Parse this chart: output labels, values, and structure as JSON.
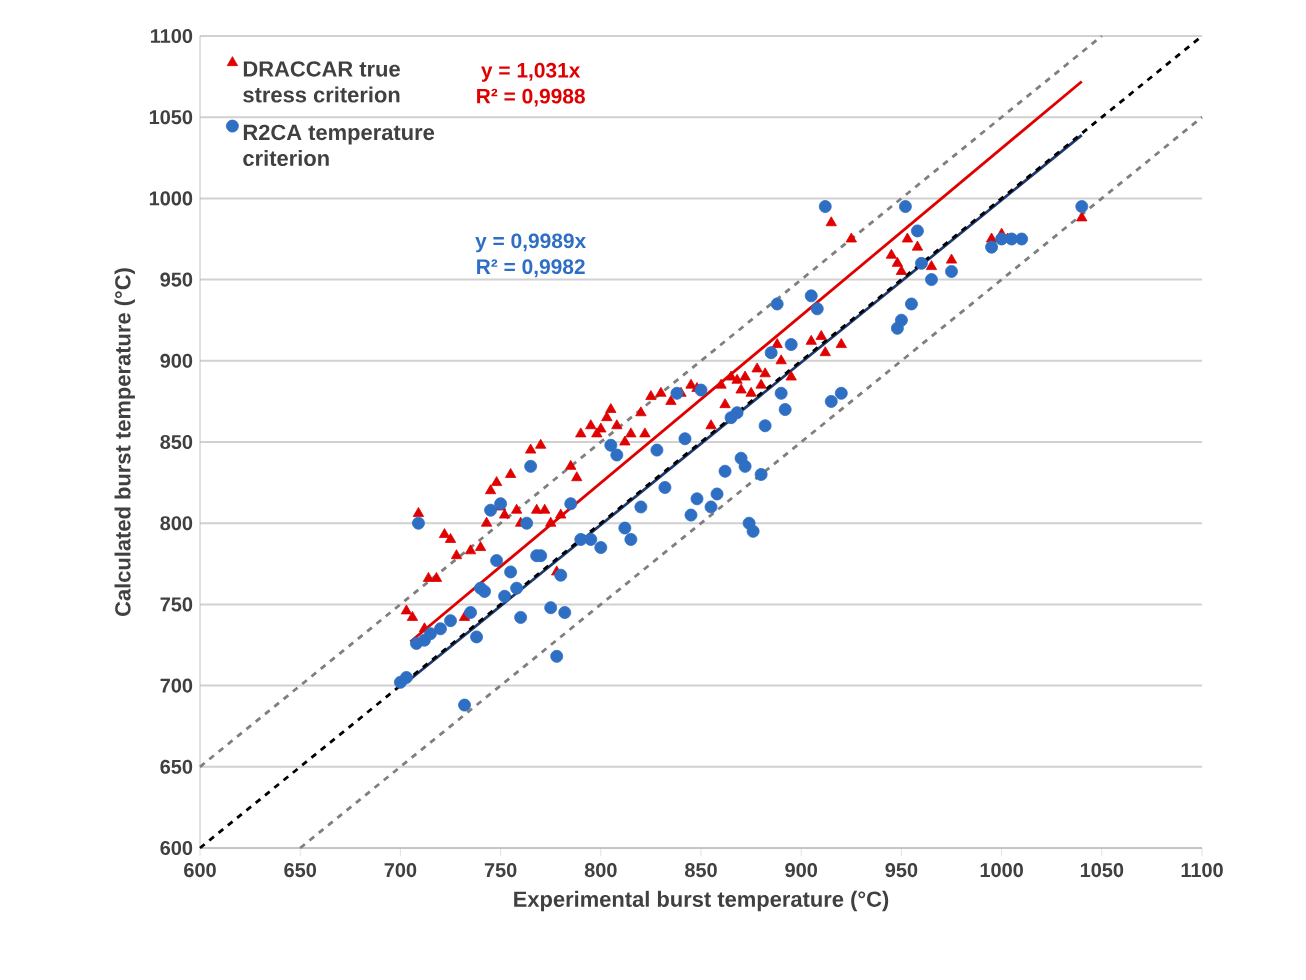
{
  "chart_data": {
    "type": "scatter",
    "xlabel": "Experimental burst temperature (°C)",
    "ylabel": "Calculated  burst temperature (°C)",
    "xlim": [
      600,
      1100
    ],
    "ylim": [
      600,
      1100
    ],
    "xticks": [
      600,
      650,
      700,
      750,
      800,
      850,
      900,
      950,
      1000,
      1050,
      1100
    ],
    "yticks": [
      600,
      650,
      700,
      750,
      800,
      850,
      900,
      950,
      1000,
      1050,
      1100
    ],
    "grid": "y",
    "legend": "top left",
    "annotations": [
      "y = 1,031x\nR² = 0,9988",
      "y = 0,9989x\nR² = 0,9982"
    ],
    "series": [
      {
        "name": "DRACCAR true stress criterion",
        "color": "#e00000",
        "marker": "triangle",
        "x": [
          703,
          706,
          709,
          712,
          714,
          718,
          722,
          725,
          728,
          732,
          735,
          740,
          743,
          745,
          748,
          750,
          752,
          755,
          758,
          760,
          765,
          768,
          770,
          772,
          775,
          778,
          780,
          785,
          788,
          790,
          795,
          798,
          800,
          803,
          805,
          808,
          812,
          815,
          820,
          822,
          825,
          830,
          835,
          840,
          845,
          848,
          855,
          860,
          862,
          865,
          868,
          870,
          872,
          875,
          878,
          880,
          882,
          885,
          888,
          890,
          895,
          905,
          910,
          912,
          915,
          920,
          925,
          945,
          948,
          950,
          953,
          958,
          965,
          975,
          995,
          1000,
          1003,
          1040
        ],
        "values": [
          746,
          742,
          806,
          735,
          766,
          766,
          793,
          790,
          780,
          742,
          783,
          785,
          800,
          820,
          825,
          810,
          805,
          830,
          808,
          800,
          845,
          808,
          848,
          808,
          800,
          770,
          805,
          835,
          828,
          855,
          860,
          855,
          858,
          865,
          870,
          860,
          850,
          855,
          868,
          855,
          878,
          880,
          875,
          880,
          885,
          883,
          860,
          885,
          873,
          890,
          888,
          882,
          890,
          880,
          895,
          885,
          892,
          905,
          910,
          900,
          890,
          912,
          915,
          905,
          985,
          910,
          975,
          965,
          960,
          955,
          975,
          970,
          958,
          962,
          975,
          978,
          975,
          988
        ]
      },
      {
        "name": "R2CA temperature criterion",
        "color": "#2e6fc4",
        "marker": "circle",
        "x": [
          700,
          703,
          708,
          709,
          712,
          715,
          720,
          725,
          732,
          735,
          738,
          740,
          742,
          745,
          748,
          750,
          752,
          755,
          758,
          760,
          763,
          765,
          768,
          770,
          775,
          778,
          780,
          782,
          785,
          790,
          795,
          800,
          805,
          808,
          812,
          815,
          820,
          828,
          832,
          838,
          842,
          845,
          848,
          850,
          855,
          858,
          862,
          865,
          868,
          870,
          872,
          874,
          876,
          880,
          882,
          885,
          888,
          890,
          892,
          895,
          905,
          908,
          912,
          915,
          920,
          948,
          950,
          952,
          955,
          958,
          960,
          965,
          975,
          995,
          1000,
          1005,
          1010,
          1040
        ],
        "values": [
          702,
          705,
          726,
          800,
          728,
          732,
          735,
          740,
          688,
          745,
          730,
          760,
          758,
          808,
          777,
          812,
          755,
          770,
          760,
          742,
          800,
          835,
          780,
          780,
          748,
          718,
          768,
          745,
          812,
          790,
          790,
          785,
          848,
          842,
          797,
          790,
          810,
          845,
          822,
          880,
          852,
          805,
          815,
          882,
          810,
          818,
          832,
          865,
          868,
          840,
          835,
          800,
          795,
          830,
          860,
          905,
          935,
          880,
          870,
          910,
          940,
          932,
          995,
          875,
          880,
          920,
          925,
          995,
          935,
          980,
          960,
          950,
          955,
          970,
          975,
          975,
          975,
          995
        ]
      },
      {
        "type": "line",
        "color": "#e00000",
        "line_style": "solid",
        "x": [
          705,
          1040
        ],
        "values": [
          727,
          1072
        ]
      },
      {
        "type": "line",
        "color": "#1f3a6e",
        "line_style": "solid",
        "x": [
          700,
          1040
        ],
        "values": [
          699,
          1039
        ]
      },
      {
        "type": "line",
        "color": "#000000",
        "line_style": "dashed",
        "x": [
          600,
          1100
        ],
        "values": [
          600,
          1100
        ]
      },
      {
        "type": "line",
        "color": "#7f7f7f",
        "line_style": "dashed",
        "x": [
          600,
          1050
        ],
        "values": [
          650,
          1100
        ]
      },
      {
        "type": "line",
        "color": "#7f7f7f",
        "line_style": "dashed",
        "x": [
          650,
          1100
        ],
        "values": [
          600,
          1050
        ]
      }
    ]
  }
}
